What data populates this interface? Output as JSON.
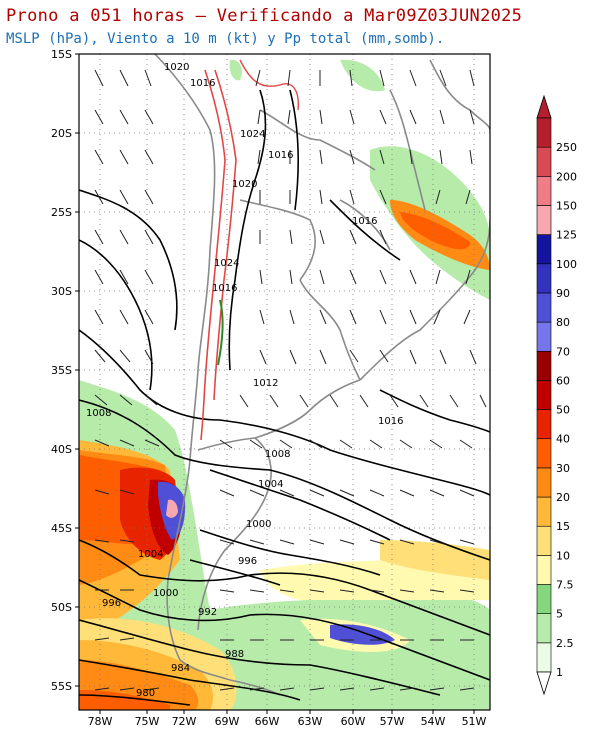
{
  "header": {
    "title": "Prono a 051 horas — Verificando a Mar09Z03JUN2025",
    "subtitle": "MSLP (hPa), Viento a 10 m (kt) y Pp total (mm,somb)."
  },
  "axes": {
    "lat_labels": [
      "15S",
      "20S",
      "25S",
      "30S",
      "35S",
      "40S",
      "45S",
      "50S",
      "55S"
    ],
    "lon_labels": [
      "78W",
      "75W",
      "72W",
      "69W",
      "66W",
      "63W",
      "60W",
      "57W",
      "54W",
      "51W"
    ]
  },
  "isobar_labels": [
    "1020",
    "1016",
    "1024",
    "1016",
    "1020",
    "1016",
    "1024",
    "1016",
    "1012",
    "1016",
    "1008",
    "1008",
    "1004",
    "1000",
    "1004",
    "996",
    "1000",
    "996",
    "992",
    "988",
    "984",
    "980"
  ],
  "colorbar": {
    "labels": [
      "1",
      "2.5",
      "5",
      "7.5",
      "10",
      "15",
      "20",
      "30",
      "40",
      "50",
      "60",
      "70",
      "80",
      "90",
      "100",
      "125",
      "150",
      "200",
      "250"
    ],
    "colors": [
      "#eafbe6",
      "#b6ebaa",
      "#84d77c",
      "#fffab0",
      "#ffdf78",
      "#ffb838",
      "#ff8a14",
      "#ff5e00",
      "#e82400",
      "#c00000",
      "#9b0000",
      "#7575ec",
      "#5050d6",
      "#3232be",
      "#1414a0",
      "#f7a7b0",
      "#ef7c86",
      "#d94a55",
      "#b51f2d"
    ]
  }
}
